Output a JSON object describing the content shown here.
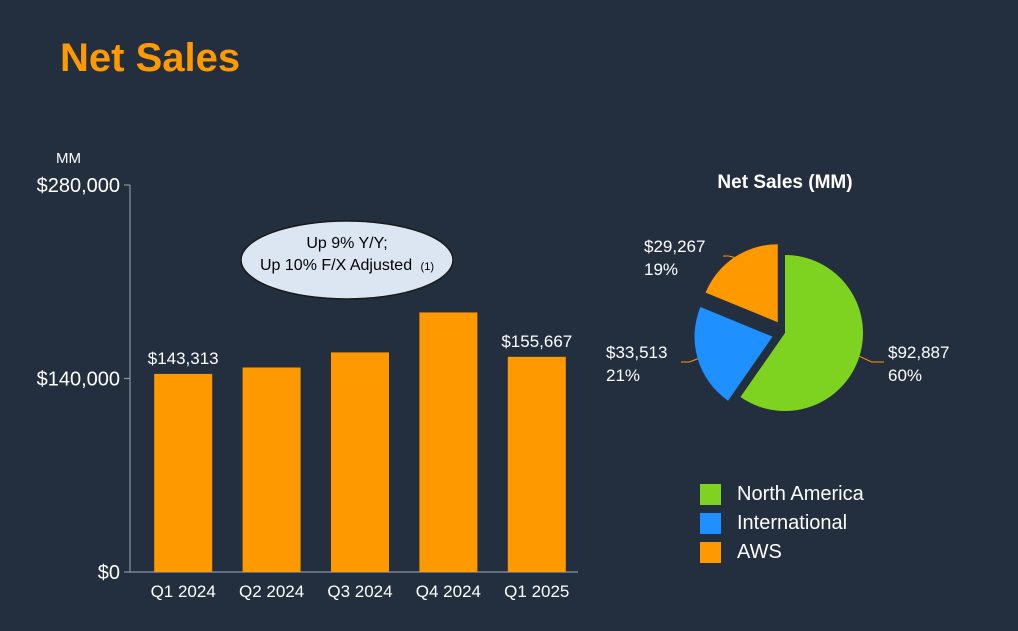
{
  "page": {
    "title": "Net Sales"
  },
  "chart_data": [
    {
      "type": "bar",
      "ylabel": "MM",
      "ylim": [
        0,
        280000
      ],
      "yticks": [
        "$0",
        "$140,000",
        "$280,000"
      ],
      "yticks_values": [
        0,
        140000,
        280000
      ],
      "categories": [
        "Q1 2024",
        "Q2 2024",
        "Q3 2024",
        "Q4 2024",
        "Q1 2025"
      ],
      "values": [
        143313,
        147977,
        158877,
        187792,
        155667
      ],
      "data_labels": [
        "$143,313",
        "",
        "",
        "",
        "$155,667"
      ],
      "bar_color": "#ff9900",
      "annotation": {
        "line1": "Up 9% Y/Y;",
        "line2": "Up 10% F/X Adjusted",
        "note": "(1)"
      }
    },
    {
      "type": "pie",
      "title": "Net Sales (MM)",
      "slices": [
        {
          "name": "North America",
          "value": 92887,
          "label": "$92,887",
          "percent": "60%",
          "color": "#7ed321"
        },
        {
          "name": "International",
          "value": 33513,
          "label": "$33,513",
          "percent": "21%",
          "color": "#1e90ff"
        },
        {
          "name": "AWS",
          "value": 29267,
          "label": "$29,267",
          "percent": "19%",
          "color": "#ff9900"
        }
      ],
      "legend_position": "bottom"
    }
  ]
}
